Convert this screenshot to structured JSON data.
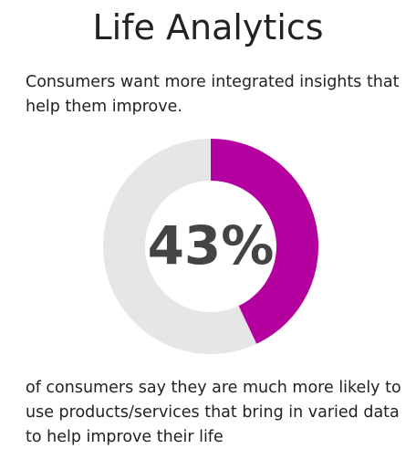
{
  "chart_data": {
    "type": "donut",
    "title": "Life Analytics",
    "subtitle": "Consumers want more integrated insights that help them improve.",
    "values": [
      43
    ],
    "value_labels": [
      "43%"
    ],
    "color": "#b4009e",
    "track_color": "#e6e6e6",
    "caption": "of consumers say they are much more likely to use products/services that bring in varied data to help improve their life"
  }
}
